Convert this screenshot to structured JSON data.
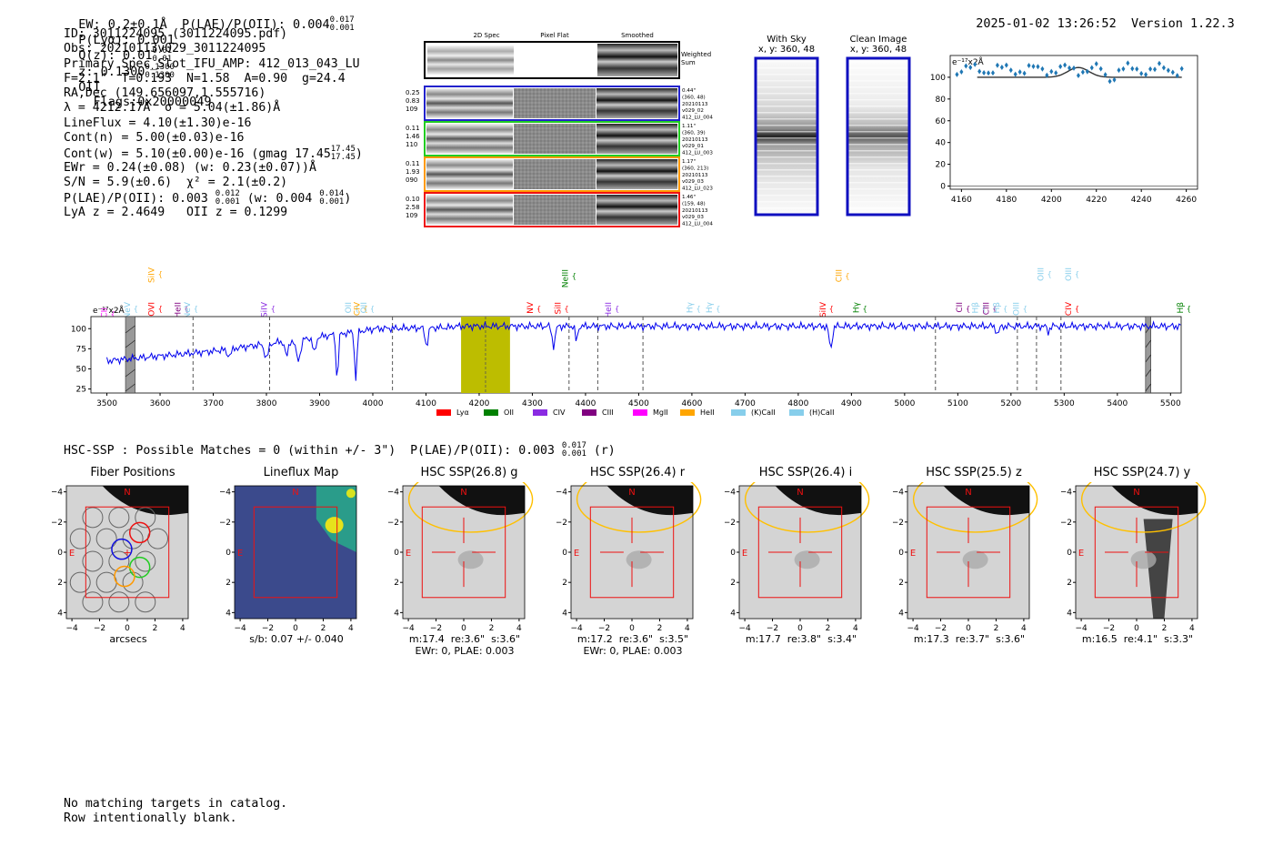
{
  "header": {
    "left": "EW: 0.2±0.1Å  P(LAE)/P(OII): 0.004",
    "plae_sup": "0.017",
    "plae_sub": "0.001",
    "plya": "P(Lyα): 0.001",
    "qz": "Q(z): 0.01",
    "qz_sup": "0.01",
    "qz_sub": "0.01",
    "z": "z: 0.1300",
    "z_sup": "0.1300",
    "z_sub": "0.1300",
    "z_tail": "OII",
    "flags": "Flags:0x20000049",
    "datetime": "2025-01-02 13:26:52",
    "version": "Version 1.22.3"
  },
  "info": {
    "id": "ID: 3011224095 (3011224095.pdf)",
    "obs": "Obs: 20210113v029_3011224095",
    "primary": "Primary Spec_Slot_IFU_AMP: 412_013_043_LU",
    "fwhm": "F=2.1\"  T=0.193  N=1.58  A=0.90  g=24.4",
    "radec": "RA,Dec (149.656097,1.555716)",
    "lambda": "λ = 4212.17Å  σ = 5.04(±1.86)Å",
    "lineflux": "LineFlux = 4.10(±1.30)e-16",
    "cont_n": "Cont(n) = 5.00(±0.03)e-16",
    "cont_w": "Cont(w) = 5.10(±0.00)e-16 (gmag 17.45",
    "gmag_sup": "17.45",
    "gmag_sub": "17.45",
    "ewr": "EWr = 0.24(±0.08) (w: 0.23(±0.07))Å",
    "sn": "S/N = 5.9(±0.6)  χ² = 2.1(±0.2)",
    "plae": "P(LAE)/P(OII): 0.003",
    "plae_sup": "0.012",
    "plae_sub": "0.001",
    "plae_w": "(w: 0.004",
    "plae_w_sup": "0.014",
    "plae_w_sub": "0.001",
    "lya": "LyA z = 2.4649   OII z = 0.1299"
  },
  "spec2d": {
    "headers": [
      "2D Spec",
      "Pixel Flat",
      "Smoothed"
    ],
    "weighted_label": "Weighted\nSum",
    "rows": [
      {
        "stats": "0.25\n0.83\n109",
        "meta": "0.44\"\n(360, 48)\n20210113\nv029_02\n412_LU_004",
        "color": "#2222cc"
      },
      {
        "stats": "0.11\n1.46\n110",
        "meta": "1.11\"\n(360, 39)\n20210113\nv029_01\n412_LU_003",
        "color": "#22cc22"
      },
      {
        "stats": "0.11\n1.93\n090",
        "meta": "1.17\"\n(360, 213)\n20210113\nv029_03\n412_LU_023",
        "color": "#ff9900"
      },
      {
        "stats": "0.10\n2.58\n109",
        "meta": "1.46\"\n(159, 48)\n20210113\nv029_03\n412_LU_004",
        "color": "#ee1111"
      }
    ]
  },
  "sky": {
    "with_sky_title": "With Sky",
    "with_sky_coords": "x, y: 360, 48",
    "clean_title": "Clean Image",
    "clean_coords": "x, y: 360, 48"
  },
  "zoom": {
    "unit_label": "e⁻¹⁷x2Å",
    "yticks": [
      "0",
      "20",
      "40",
      "60",
      "80",
      "100"
    ],
    "xticks": [
      "4160",
      "4180",
      "4200",
      "4220",
      "4240",
      "4260"
    ]
  },
  "full_spec": {
    "unit_label": "e⁻¹⁷x2Å",
    "yticks": [
      "25",
      "50",
      "75",
      "100"
    ],
    "xticks": [
      "3500",
      "3600",
      "3700",
      "3800",
      "3900",
      "4000",
      "4100",
      "4200",
      "4300",
      "4400",
      "4500",
      "4600",
      "4700",
      "4800",
      "4900",
      "5000",
      "5100",
      "5200",
      "5300",
      "5400",
      "5500"
    ],
    "line_labels": [
      {
        "text": "CII",
        "color": "#ff00ff"
      },
      {
        "text": "NeV",
        "color": "#87ceeb"
      },
      {
        "text": "SiIV",
        "color": "#ffa500"
      },
      {
        "text": "OVI",
        "color": "#ff0000"
      },
      {
        "text": "HeII",
        "color": "#800080"
      },
      {
        "text": "NeV",
        "color": "#87ceeb"
      },
      {
        "text": "SiIV",
        "color": "#8a2be2"
      },
      {
        "text": "OII",
        "color": "#87ceeb"
      },
      {
        "text": "CIV",
        "color": "#ffa500"
      },
      {
        "text": "OII",
        "color": "#87ceeb"
      },
      {
        "text": "NeIII",
        "color": "#008000"
      },
      {
        "text": "NV",
        "color": "#ff0000"
      },
      {
        "text": "SiII",
        "color": "#ff0000"
      },
      {
        "text": "HeII",
        "color": "#8a2be2"
      },
      {
        "text": "Hγ",
        "color": "#87ceeb"
      },
      {
        "text": "Hγ",
        "color": "#87ceeb"
      },
      {
        "text": "SiIV",
        "color": "#ff0000"
      },
      {
        "text": "CIII",
        "color": "#ffa500"
      },
      {
        "text": "Hγ",
        "color": "#008000"
      },
      {
        "text": "CII",
        "color": "#800080"
      },
      {
        "text": "Hβ",
        "color": "#87ceeb"
      },
      {
        "text": "CIII",
        "color": "#800080"
      },
      {
        "text": "Hβ",
        "color": "#87ceeb"
      },
      {
        "text": "OIII",
        "color": "#87ceeb"
      },
      {
        "text": "OIII",
        "color": "#87ceeb"
      },
      {
        "text": "OIII",
        "color": "#87ceeb"
      },
      {
        "text": "CIV",
        "color": "#ff0000"
      },
      {
        "text": "Hβ",
        "color": "#008000"
      }
    ],
    "legend": [
      {
        "label": "Lyα",
        "color": "#ff0000"
      },
      {
        "label": "OII",
        "color": "#008000"
      },
      {
        "label": "CIV",
        "color": "#8a2be2"
      },
      {
        "label": "CIII",
        "color": "#800080"
      },
      {
        "label": "MgII",
        "color": "#ff00ff"
      },
      {
        "label": "HeII",
        "color": "#ffa500"
      },
      {
        "label": "(K)CaII",
        "color": "#87ceeb"
      },
      {
        "label": "(H)CaII",
        "color": "#87ceeb"
      }
    ]
  },
  "hsc": {
    "summary": "HSC-SSP : Possible Matches = 0 (within +/- 3\")  P(LAE)/P(OII): 0.003",
    "summary_sup": "0.017",
    "summary_sub": "0.001",
    "summary_tail": "(r)",
    "panels": [
      {
        "title": "Fiber Positions",
        "cap1": "arcsecs",
        "cap2": ""
      },
      {
        "title": "Lineflux Map",
        "cap1": "s/b: 0.07 +/- 0.040",
        "cap2": ""
      },
      {
        "title": "HSC SSP(26.8) g",
        "cap1": "m:17.4  re:3.6\"  s:3.6\"",
        "cap2": "EWr: 0, PLAE: 0.003"
      },
      {
        "title": "HSC SSP(26.4) r",
        "cap1": "m:17.2  re:3.6\"  s:3.5\"",
        "cap2": "EWr: 0, PLAE: 0.003"
      },
      {
        "title": "HSC SSP(26.4) i",
        "cap1": "m:17.7  re:3.8\"  s:3.4\"",
        "cap2": ""
      },
      {
        "title": "HSC SSP(25.5) z",
        "cap1": "m:17.3  re:3.7\"  s:3.6\"",
        "cap2": ""
      },
      {
        "title": "HSC SSP(24.7) y",
        "cap1": "m:16.5  re:4.1\"  s:3.3\"",
        "cap2": ""
      }
    ],
    "ticks": [
      "−4",
      "−2",
      "0",
      "2",
      "4"
    ],
    "north": "N",
    "east": "E"
  },
  "footer": {
    "line1": "No matching targets in catalog.",
    "line2": "Row intentionally blank."
  },
  "colors": {
    "spectrum": "#0000ee",
    "highlight": "#bdbd00",
    "zoom_points": "#1f77b4",
    "box_red": "#ee1111",
    "ellipse": "#ffc000"
  }
}
